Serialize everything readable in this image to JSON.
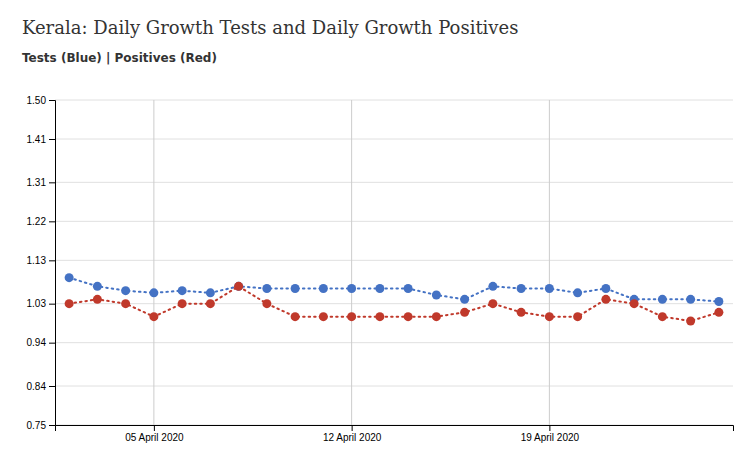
{
  "chart_data": {
    "type": "line",
    "title": "Kerala: Daily Growth Tests and Daily Growth Positives",
    "subtitle": "Tests (Blue) | Positives (Red)",
    "categories": [
      null,
      null,
      null,
      "05 April 2020",
      null,
      null,
      null,
      null,
      null,
      null,
      "12 April 2020",
      null,
      null,
      null,
      null,
      null,
      null,
      "19 April 2020",
      null,
      null,
      null,
      null,
      null,
      null
    ],
    "series": [
      {
        "color": "#4472C4",
        "marker": "circle",
        "line_style": "dotted",
        "values": [
          1.09,
          1.07,
          1.06,
          1.055,
          1.06,
          1.055,
          1.07,
          1.065,
          1.065,
          1.065,
          1.065,
          1.065,
          1.065,
          1.05,
          1.04,
          1.07,
          1.065,
          1.065,
          1.055,
          1.065,
          1.04,
          1.04,
          1.04,
          1.035
        ]
      },
      {
        "color": "#C0392B",
        "marker": "circle",
        "line_style": "dotted",
        "values": [
          1.03,
          1.04,
          1.03,
          1.0,
          1.03,
          1.03,
          1.07,
          1.03,
          1.0,
          1.0,
          1.0,
          1.0,
          1.0,
          1.0,
          1.01,
          1.03,
          1.01,
          1.0,
          1.0,
          1.04,
          1.03,
          1.0,
          0.99,
          1.01
        ]
      }
    ],
    "ylim": [
      0.75,
      1.5
    ],
    "yticks": [
      0.75,
      0.84,
      0.94,
      1.03,
      1.13,
      1.22,
      1.31,
      1.41,
      {
        "value": 1.5,
        "label": "1.50"
      }
    ],
    "grid": true
  }
}
